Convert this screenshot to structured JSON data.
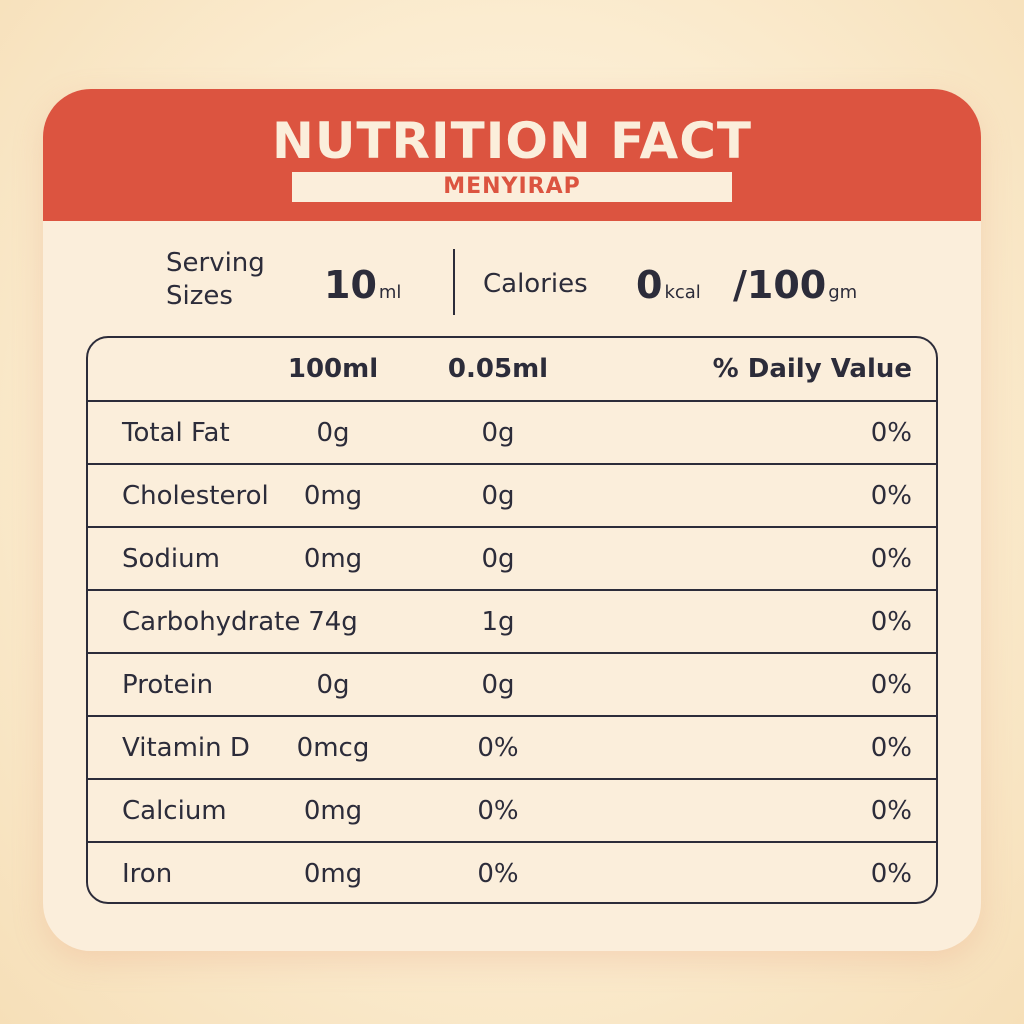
{
  "header": {
    "title": "NUTRITION FACT",
    "subtitle": "MENYIRAP"
  },
  "summary": {
    "serving_label": "Serving\nSizes",
    "serving_value": "10",
    "serving_unit": "ml",
    "calories_label": "Calories",
    "calories_value": "0",
    "calories_unit": "kcal",
    "per_value": "/100",
    "per_unit": "gm"
  },
  "table": {
    "columns": [
      "",
      "100ml",
      "0.05ml",
      "% Daily Value"
    ],
    "rows": [
      {
        "name": "Total Fat",
        "v100": "0g",
        "v005": "0g",
        "dv": "0%"
      },
      {
        "name": "Cholesterol",
        "v100": "0mg",
        "v005": "0g",
        "dv": "0%"
      },
      {
        "name": "Sodium",
        "v100": "0mg",
        "v005": "0g",
        "dv": "0%"
      },
      {
        "name": "Carbohydrate",
        "v100": "74g",
        "v005": "1g",
        "dv": "0%"
      },
      {
        "name": "Protein",
        "v100": "0g",
        "v005": "0g",
        "dv": "0%"
      },
      {
        "name": "Vitamin D",
        "v100": "0mcg",
        "v005": "0%",
        "dv": "0%"
      },
      {
        "name": "Calcium",
        "v100": "0mg",
        "v005": "0%",
        "dv": "0%"
      },
      {
        "name": "Iron",
        "v100": "0mg",
        "v005": "0%",
        "dv": "0%"
      }
    ]
  },
  "colors": {
    "accent": "#dc5440",
    "card": "#fbeedb",
    "text": "#2c2c3a"
  }
}
